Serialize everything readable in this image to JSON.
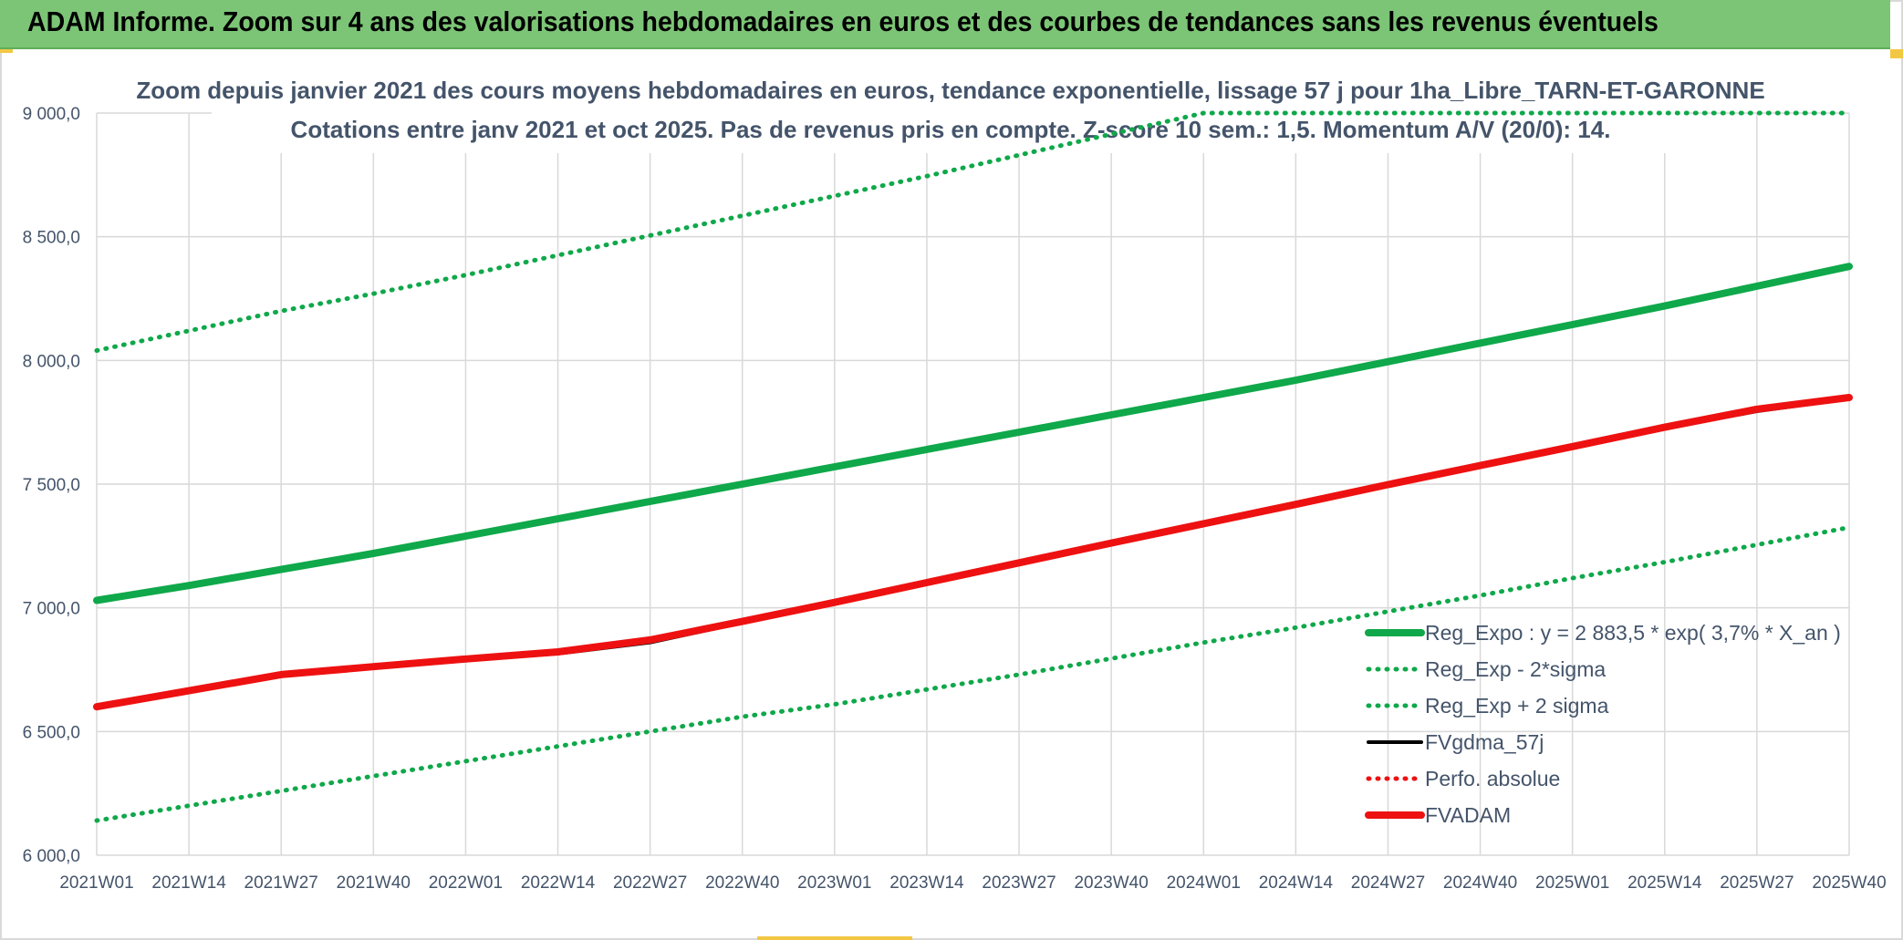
{
  "banner": {
    "title": "ADAM Informe. Zoom sur 4 ans des valorisations hebdomadaires en euros et des courbes de tendances sans les revenus éventuels"
  },
  "colors": {
    "banner_bg": "#7cc576",
    "green": "#0fa84a",
    "red": "#ee1111",
    "black": "#000000",
    "axis_text": "#44546a",
    "grid": "#d9d9d9"
  },
  "chart_data": {
    "type": "line",
    "title_lines": [
      "Zoom depuis janvier 2021 des cours moyens hebdomadaires en euros, tendance exponentielle, lissage 57 j pour 1ha_Libre_TARN-ET-GARONNE",
      "Cotations entre janv 2021 et oct 2025. Pas de revenus pris en compte. Z-score 10 sem.: 1,5. Momentum A/V (20/0): 14."
    ],
    "xlabel": "",
    "ylabel": "",
    "ylim": [
      6000,
      9000
    ],
    "yticks": [
      6000,
      6500,
      7000,
      7500,
      8000,
      8500,
      9000
    ],
    "ytick_labels": [
      "6 000,0",
      "6 500,0",
      "7 000,0",
      "7 500,0",
      "8 000,0",
      "8 500,0",
      "9 000,0"
    ],
    "x_categories": [
      "2021W01",
      "2021W14",
      "2021W27",
      "2021W40",
      "2022W01",
      "2022W14",
      "2022W27",
      "2022W40",
      "2023W01",
      "2023W14",
      "2023W27",
      "2023W40",
      "2024W01",
      "2024W14",
      "2024W27",
      "2024W40",
      "2025W01",
      "2025W14",
      "2025W27",
      "2025W40"
    ],
    "grid": true,
    "legend_position": "bottom-right",
    "series": [
      {
        "name": "Reg_Expo : y = 2 883,5 * exp( 3,7% *  X_an )",
        "style": "solid-thick",
        "color": "#0fa84a",
        "values": [
          7030,
          7090,
          7155,
          7220,
          7290,
          7360,
          7430,
          7500,
          7570,
          7640,
          7710,
          7780,
          7850,
          7920,
          7995,
          8070,
          8145,
          8220,
          8300,
          8380
        ]
      },
      {
        "name": "Reg_Exp - 2*sigma",
        "style": "dotted",
        "color": "#0fa84a",
        "values": [
          6140,
          6200,
          6260,
          6320,
          6380,
          6440,
          6500,
          6560,
          6610,
          6670,
          6730,
          6795,
          6860,
          6920,
          6985,
          7050,
          7120,
          7185,
          7255,
          7325
        ]
      },
      {
        "name": "Reg_Exp + 2 sigma",
        "style": "dotted",
        "color": "#0fa84a",
        "values": [
          8040,
          8120,
          8200,
          8270,
          8345,
          8425,
          8505,
          8585,
          8665,
          8745,
          8830,
          8915,
          9000,
          9000,
          9000,
          9000,
          9000,
          9000,
          9000,
          9000
        ]
      },
      {
        "name": "FVgdma_57j",
        "style": "solid",
        "color": "#000000",
        "values": [
          6600,
          6665,
          6725,
          6760,
          6790,
          6815,
          6860,
          6940,
          7020,
          7100,
          7180,
          7260,
          7340,
          7415,
          7495,
          7570,
          7650,
          7725,
          7795,
          7845
        ]
      },
      {
        "name": "Perfo. absolue",
        "style": "dotted",
        "color": "#ee1111",
        "values": [
          6600,
          6665,
          6730,
          6762,
          6793,
          6822,
          6870,
          6945,
          7022,
          7102,
          7182,
          7262,
          7340,
          7418,
          7498,
          7575,
          7652,
          7730,
          7803,
          7850
        ]
      },
      {
        "name": "FVADAM",
        "style": "solid-thick",
        "color": "#ee1111",
        "values": [
          6600,
          6665,
          6730,
          6762,
          6793,
          6822,
          6870,
          6945,
          7022,
          7102,
          7182,
          7262,
          7340,
          7418,
          7498,
          7575,
          7652,
          7730,
          7803,
          7850
        ]
      }
    ]
  }
}
